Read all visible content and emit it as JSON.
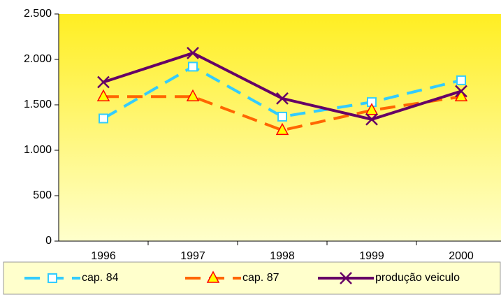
{
  "chart_data": {
    "type": "line",
    "categories": [
      "1996",
      "1997",
      "1998",
      "1999",
      "2000"
    ],
    "series": [
      {
        "name": "cap. 84",
        "color": "#33ccff",
        "dash": true,
        "marker": "square",
        "values": [
          1350,
          1920,
          1370,
          1530,
          1770
        ]
      },
      {
        "name": "cap. 87",
        "color": "#ff6600",
        "dash": true,
        "marker": "triangle",
        "values": [
          1590,
          1590,
          1220,
          1440,
          1590
        ]
      },
      {
        "name": "produção veiculo",
        "color": "#660066",
        "dash": false,
        "marker": "x",
        "values": [
          1750,
          2070,
          1570,
          1340,
          1650
        ]
      }
    ],
    "ylim": [
      0,
      2500
    ],
    "yticks": [
      0,
      500,
      {
        "value": 1000,
        "label": "1.000"
      },
      {
        "value": 1500,
        "label": "1.500"
      },
      {
        "value": 2000,
        "label": "2.000"
      },
      {
        "value": 2500,
        "label": "2.500"
      }
    ],
    "legend": "bottom"
  }
}
